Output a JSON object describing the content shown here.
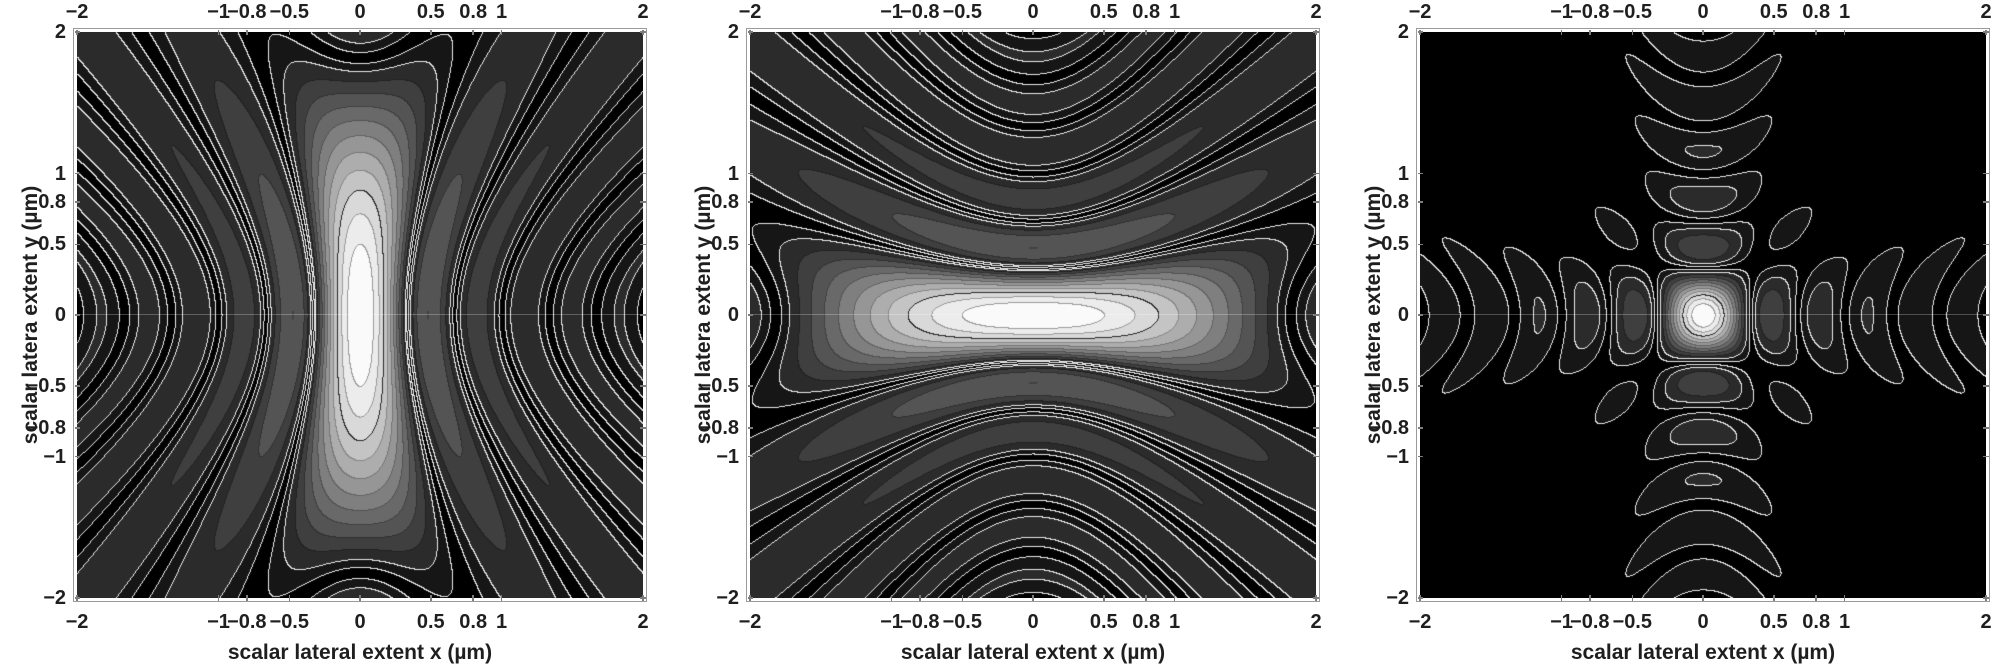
{
  "figure": {
    "background": "#ffffff",
    "n_plots": 3,
    "colormap": "grayscale, black = 0 (minimum) to white = 1 (peak), discrete contour bands"
  },
  "axes_shared": {
    "x_label": "scalar lateral extent x (µm)",
    "y_label": "scalar latera extent y (µm)",
    "x_range": [
      -2,
      2
    ],
    "y_range": [
      -2,
      2
    ],
    "x_tick_values": [
      -2,
      -1,
      -0.8,
      -0.5,
      0,
      0.5,
      0.8,
      1,
      2
    ],
    "x_tick_labels": [
      "−2",
      "−1",
      "−0.8",
      "−0.5",
      "0",
      "0.5",
      "0.8",
      "1",
      "2"
    ],
    "y_tick_values": [
      2,
      1,
      0.8,
      0.5,
      0,
      -0.5,
      -0.8,
      -1,
      -2
    ],
    "y_tick_labels": [
      "2",
      "1",
      "0.8",
      "0.5",
      "0",
      "−0.5",
      "−0.8",
      "−1",
      "−2"
    ],
    "ticks_on_sides": [
      "top",
      "bottom",
      "left",
      "right"
    ],
    "top_axis_labeled": true
  },
  "style": {
    "frame_color": "#9a9a9a",
    "tick_stub_color": "#7d7d7d",
    "label_color": "#1f1f1f",
    "hairline_color": "rgba(255,255,255,0.25)",
    "palette_gray_levels": [
      0,
      22,
      43,
      63,
      84,
      105,
      127,
      150,
      173,
      196,
      217,
      236,
      250
    ],
    "contour_line_light": "#ebebeb",
    "contour_line_core_ring": "#282828",
    "contour_line_inner_core": "#9b9b9b"
  },
  "chart_data": [
    {
      "type": "contour",
      "name": "scalar PSF, elongated along y",
      "x_label": "scalar lateral extent x (µm)",
      "y_label": "scalar latera extent y (µm)",
      "x_range": [
        -2,
        2
      ],
      "y_range": [
        -2,
        2
      ],
      "normalized_intensity_range": [
        0,
        1
      ],
      "model": {
        "kind": "sinc2_product_curved",
        "scale_x": 3.0,
        "scale_y": 0.55,
        "curvature": 0.95,
        "gamma": 0.3,
        "black_cut": 0.1,
        "levels": 13
      },
      "visible_features": {
        "peak_at": [
          0,
          0
        ],
        "bright_core_halfwidth_x": 0.25,
        "bright_core_halfwidth_y": 0.85,
        "first_null_dots_x": [
          -0.33,
          0.33
        ],
        "dark_side_lobes_x": [
          -0.5,
          0.5,
          -0.78,
          0.78
        ],
        "null_pockets_on_y_axis": [
          -1.8,
          1.8
        ],
        "black_field_beyond_abs_x": 1.5
      }
    },
    {
      "type": "contour",
      "name": "scalar PSF, elongated along x",
      "x_label": "scalar lateral extent x (µm)",
      "y_label": "scalar latera extent y (µm)",
      "x_range": [
        -2,
        2
      ],
      "y_range": [
        -2,
        2
      ],
      "normalized_intensity_range": [
        0,
        1
      ],
      "model": {
        "kind": "sinc2_product_curved",
        "scale_x": 0.55,
        "scale_y": 3.0,
        "curvature": 0.95,
        "gamma": 0.3,
        "black_cut": 0.1,
        "levels": 13
      },
      "visible_features": {
        "peak_at": [
          0,
          0
        ],
        "bright_core_halfwidth_x": 0.85,
        "bright_core_halfwidth_y": 0.25,
        "first_null_dots_y": [
          -0.33,
          0.33
        ],
        "dark_side_lobes_y": [
          -0.5,
          0.5,
          -0.78,
          0.78
        ],
        "null_pockets_on_x_axis": [
          -1.8,
          1.8
        ],
        "black_field_beyond_abs_y": 1.5
      }
    },
    {
      "type": "contour",
      "name": "scalar PSF, compact symmetric spot",
      "x_label": "scalar lateral extent x (µm)",
      "y_label": "scalar latera extent y (µm)",
      "x_range": [
        -2,
        2
      ],
      "y_range": [
        -2,
        2
      ],
      "normalized_intensity_range": [
        0,
        1
      ],
      "model": {
        "kind": "sinc2_product_curved",
        "scale_x": 3.0,
        "scale_y": 3.0,
        "curvature": 0.8,
        "gamma": 0.4,
        "black_cut": 0.06,
        "levels": 13
      },
      "visible_features": {
        "peak_at": [
          0,
          0
        ],
        "bright_core_radius": 0.28,
        "main_side_lobes_on_axes": [
          -0.45,
          0.45
        ],
        "outer_lobes_on_axes": [
          -0.8,
          0.8
        ],
        "diagonal_lobes": [
          [
            0.45,
            0.45
          ],
          [
            -0.45,
            0.45
          ],
          [
            0.45,
            -0.45
          ],
          [
            -0.45,
            -0.45
          ]
        ],
        "background": "black"
      }
    }
  ]
}
